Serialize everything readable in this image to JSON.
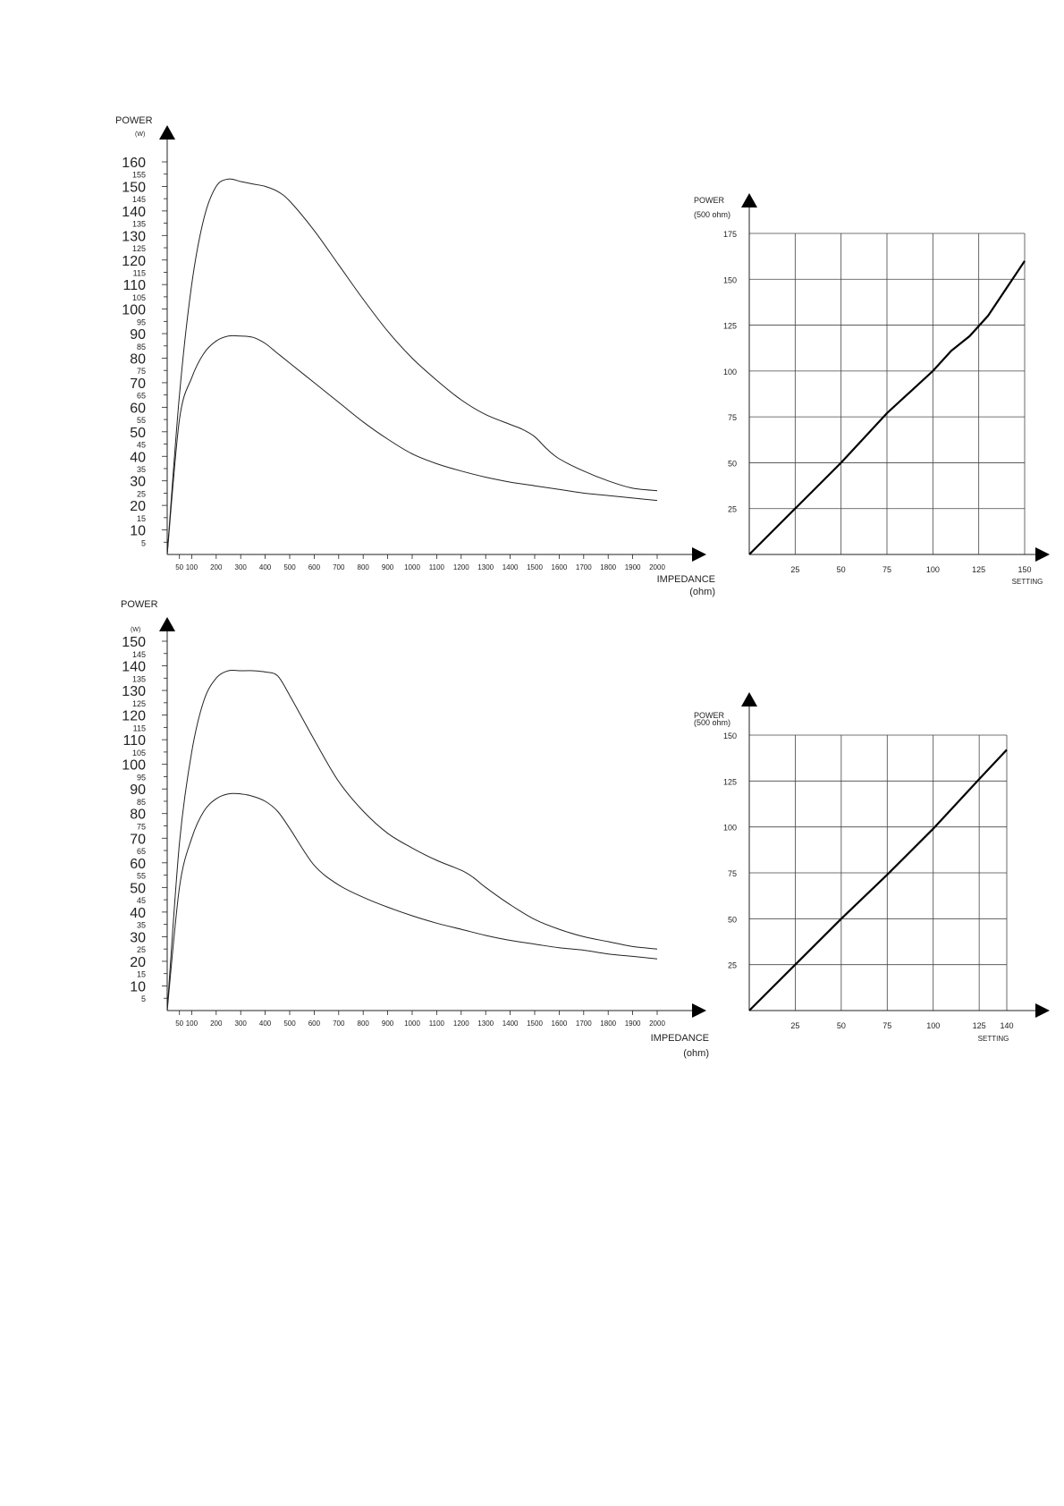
{
  "chart_data": [
    {
      "type": "line",
      "ylabel": "POWER",
      "yunit": "(W)",
      "xlabel": "IMPEDANCE",
      "xunit": "(ohm)",
      "xlim": [
        0,
        2000
      ],
      "ylim": [
        0,
        160
      ],
      "x_ticks": [
        50,
        100,
        200,
        300,
        400,
        500,
        600,
        700,
        800,
        900,
        1000,
        1100,
        1200,
        1300,
        1400,
        1500,
        1600,
        1700,
        1800,
        1900,
        2000
      ],
      "y_ticks_major": [
        10,
        20,
        30,
        40,
        50,
        60,
        70,
        80,
        90,
        100,
        110,
        120,
        130,
        140,
        150,
        160
      ],
      "y_ticks_minor": [
        5,
        15,
        25,
        35,
        45,
        55,
        65,
        75,
        85,
        95,
        105,
        115,
        125,
        135,
        145,
        155
      ],
      "series": [
        {
          "x": [
            0,
            50,
            100,
            150,
            200,
            250,
            300,
            350,
            400,
            450,
            500,
            600,
            700,
            800,
            900,
            1000,
            1100,
            1200,
            1300,
            1400,
            1450,
            1500,
            1550,
            1600,
            1700,
            1800,
            1900,
            2000
          ],
          "y": [
            0,
            65,
            110,
            137,
            150,
            153,
            152,
            151,
            150,
            148,
            144,
            132,
            118,
            104,
            91,
            80,
            71,
            63,
            57,
            53,
            51,
            48,
            43,
            39,
            34,
            30,
            27,
            26
          ]
        },
        {
          "x": [
            0,
            50,
            100,
            150,
            200,
            250,
            300,
            350,
            400,
            450,
            500,
            600,
            700,
            800,
            900,
            1000,
            1100,
            1200,
            1300,
            1400,
            1500,
            1600,
            1700,
            1800,
            1900,
            2000
          ],
          "y": [
            0,
            55,
            72,
            82,
            87,
            89,
            89,
            88.5,
            86,
            82,
            78,
            70,
            62,
            54,
            47,
            41,
            37,
            34,
            31.5,
            29.5,
            28,
            26.5,
            25,
            24,
            23,
            22
          ]
        }
      ]
    },
    {
      "type": "line",
      "ylabel": "POWER",
      "yunit": "(500 ohm)",
      "xlabel": "SETTING",
      "xlim": [
        0,
        150
      ],
      "ylim": [
        0,
        175
      ],
      "x_ticks": [
        25,
        50,
        75,
        100,
        125,
        150
      ],
      "y_ticks": [
        25,
        50,
        75,
        100,
        125,
        150,
        175
      ],
      "series": [
        {
          "x": [
            0,
            25,
            50,
            75,
            100,
            110,
            120,
            130,
            140,
            150
          ],
          "y": [
            0,
            25,
            50,
            77,
            100,
            111,
            119,
            130,
            145,
            160
          ]
        }
      ]
    },
    {
      "type": "line",
      "ylabel": "POWER",
      "yunit": "(W)",
      "xlabel": "IMPEDANCE",
      "xunit": "(ohm)",
      "xlim": [
        0,
        2000
      ],
      "ylim": [
        0,
        150
      ],
      "x_ticks": [
        50,
        100,
        200,
        300,
        400,
        500,
        600,
        700,
        800,
        900,
        1000,
        1100,
        1200,
        1300,
        1400,
        1500,
        1600,
        1700,
        1800,
        1900,
        2000
      ],
      "y_ticks_major": [
        10,
        20,
        30,
        40,
        50,
        60,
        70,
        80,
        90,
        100,
        110,
        120,
        130,
        140,
        150
      ],
      "y_ticks_minor": [
        5,
        15,
        25,
        35,
        45,
        55,
        65,
        75,
        85,
        95,
        105,
        115,
        125,
        135,
        145
      ],
      "series": [
        {
          "x": [
            0,
            50,
            100,
            150,
            200,
            250,
            300,
            350,
            400,
            450,
            500,
            600,
            700,
            800,
            900,
            1000,
            1100,
            1200,
            1250,
            1300,
            1400,
            1500,
            1600,
            1700,
            1800,
            1900,
            2000
          ],
          "y": [
            0,
            68,
            105,
            126,
            135,
            138,
            138,
            138,
            137.5,
            136,
            128,
            110,
            93,
            81,
            72,
            66,
            61,
            57,
            54,
            50,
            43,
            37,
            33,
            30,
            28,
            26,
            25
          ]
        },
        {
          "x": [
            0,
            50,
            100,
            150,
            200,
            250,
            300,
            350,
            400,
            450,
            500,
            600,
            700,
            800,
            900,
            1000,
            1100,
            1200,
            1300,
            1400,
            1500,
            1600,
            1700,
            1800,
            1900,
            2000
          ],
          "y": [
            0,
            50,
            70,
            81,
            86,
            88,
            88,
            87,
            85,
            81,
            74,
            59,
            51,
            46,
            42,
            38.5,
            35.5,
            33,
            30.5,
            28.5,
            27,
            25.5,
            24.5,
            23,
            22,
            21
          ]
        }
      ]
    },
    {
      "type": "line",
      "ylabel": "POWER",
      "yunit": "(500 ohm)",
      "xlabel": "SETTING",
      "xlim": [
        0,
        140
      ],
      "ylim": [
        0,
        150
      ],
      "x_ticks": [
        25,
        50,
        75,
        100,
        125,
        140
      ],
      "y_ticks": [
        25,
        50,
        75,
        100,
        125,
        150
      ],
      "series": [
        {
          "x": [
            0,
            25,
            50,
            75,
            100,
            125,
            140
          ],
          "y": [
            0,
            25,
            50,
            74,
            99,
            126,
            142
          ]
        }
      ]
    }
  ]
}
